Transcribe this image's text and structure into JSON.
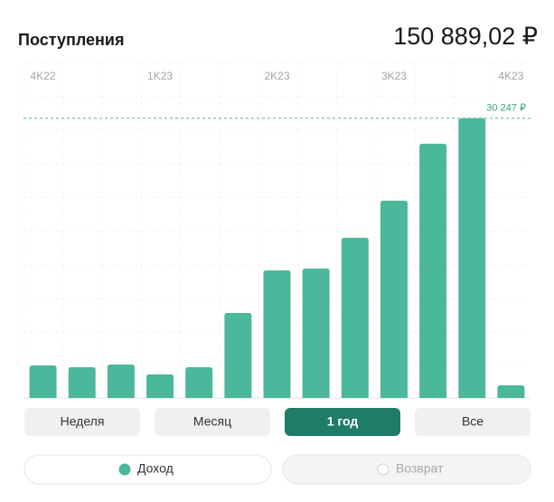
{
  "header": {
    "title": "Поступления",
    "total": "150 889,02 ₽"
  },
  "chart_data": {
    "type": "bar",
    "categories": [
      "4K22",
      null,
      null,
      "1K23",
      null,
      null,
      "2K23",
      null,
      null,
      "3K23",
      null,
      null,
      "4K23"
    ],
    "values": [
      3520,
      3330,
      3620,
      2550,
      3330,
      9200,
      13800,
      14000,
      17330,
      21340,
      27500,
      30247,
      1370
    ],
    "color": "#4cb89b",
    "ylim": [
      0,
      36000
    ],
    "annotations": [
      {
        "value": 30247,
        "label": "30 247 ₽"
      }
    ]
  },
  "periods": [
    "Неделя",
    "Месяц",
    "1 год",
    "Все"
  ],
  "active_period": 2,
  "toggles": [
    "Доход",
    "Возврат"
  ],
  "active_toggle": 0
}
